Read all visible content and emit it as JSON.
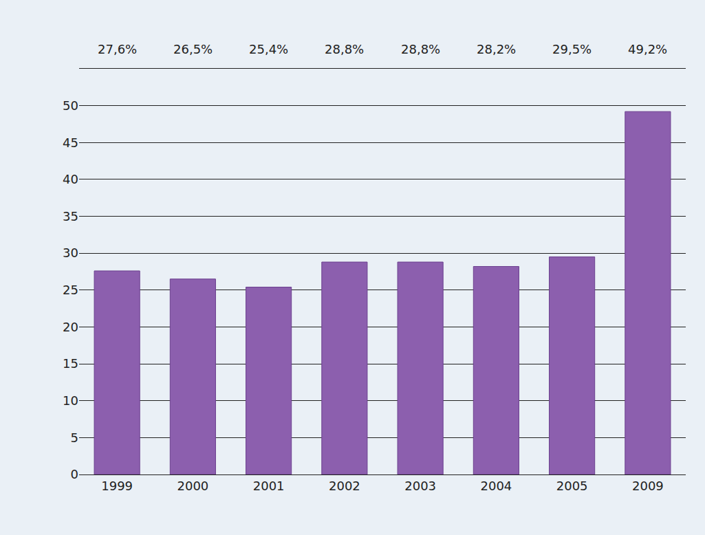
{
  "chart_data": {
    "type": "bar",
    "categories": [
      "1999",
      "2000",
      "2001",
      "2002",
      "2003",
      "2004",
      "2005",
      "2009"
    ],
    "values": [
      27.6,
      26.5,
      25.4,
      28.8,
      28.8,
      28.2,
      29.5,
      49.2
    ],
    "value_labels": [
      "27,6%",
      "26,5%",
      "25,4%",
      "28,8%",
      "28,8%",
      "28,2%",
      "29,5%",
      "49,2%"
    ],
    "data_labels": true,
    "color": "#8c5fae",
    "ylim": [
      0,
      55
    ],
    "yticks": [
      0,
      5,
      10,
      15,
      20,
      25,
      30,
      35,
      40,
      45,
      50
    ],
    "grid": true
  }
}
